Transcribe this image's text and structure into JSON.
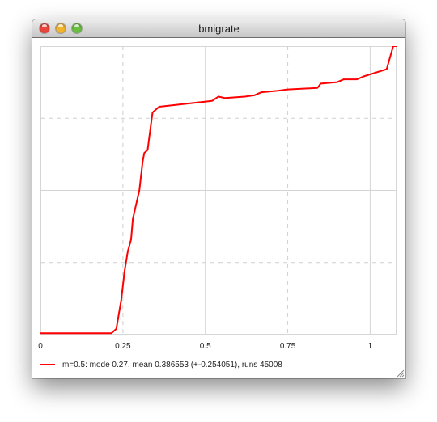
{
  "window": {
    "title": "bmigrate",
    "close_color": "#e8443c",
    "minimize_color": "#f1b42c",
    "zoom_color": "#68c03e"
  },
  "chart_data": {
    "type": "line",
    "xlim": [
      0,
      1.08
    ],
    "ylim": [
      0,
      1
    ],
    "x_ticks": [
      0,
      0.25,
      0.5,
      0.75,
      1
    ],
    "x_tick_labels": [
      "0",
      "0.25",
      "0.5",
      "0.75",
      "1"
    ],
    "y_gridlines": [
      0.25,
      0.5,
      0.75
    ],
    "grid": true,
    "legend_placement": "bottom-left",
    "series": [
      {
        "name": "m=0.5: mode 0.27, mean 0.386553 (+-0.254051), runs 45008",
        "color": "#ff0000",
        "x": [
          0,
          0.215,
          0.23,
          0.245,
          0.255,
          0.265,
          0.275,
          0.28,
          0.29,
          0.3,
          0.31,
          0.315,
          0.325,
          0.34,
          0.36,
          0.52,
          0.54,
          0.56,
          0.62,
          0.65,
          0.67,
          0.72,
          0.75,
          0.84,
          0.85,
          0.9,
          0.92,
          0.96,
          0.98,
          1.05,
          1.07,
          1.08
        ],
        "y": [
          0.005,
          0.005,
          0.02,
          0.12,
          0.22,
          0.29,
          0.33,
          0.4,
          0.45,
          0.5,
          0.6,
          0.63,
          0.64,
          0.77,
          0.79,
          0.81,
          0.825,
          0.82,
          0.825,
          0.83,
          0.84,
          0.845,
          0.85,
          0.855,
          0.87,
          0.875,
          0.885,
          0.885,
          0.895,
          0.92,
          1.0,
          1.0
        ]
      }
    ]
  }
}
